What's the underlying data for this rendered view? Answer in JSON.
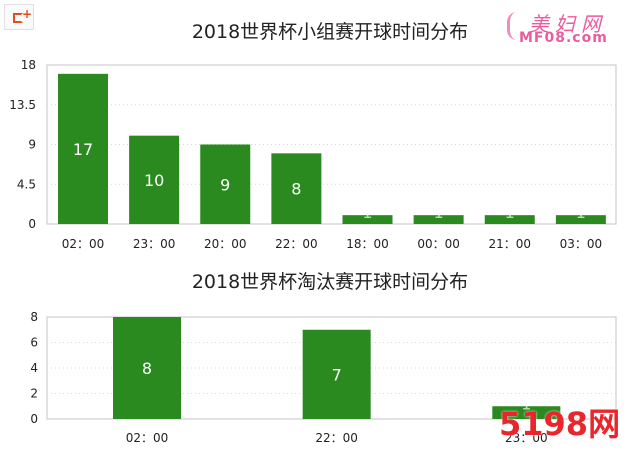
{
  "chart_data": [
    {
      "type": "bar",
      "title": "2018世界杯小组赛开球时间分布",
      "categories": [
        "02：00",
        "23：00",
        "20：00",
        "22：00",
        "18：00",
        "00：00",
        "21：00",
        "03：00"
      ],
      "values": [
        17,
        10,
        9,
        8,
        1,
        1,
        1,
        1
      ],
      "data_labels": [
        "17",
        "10",
        "9",
        "8",
        "1",
        "1",
        "1",
        "1"
      ],
      "yticks": [
        "0",
        "4.5",
        "9",
        "13.5",
        "18"
      ],
      "ylim": [
        0,
        18
      ],
      "grid": true,
      "bar_color": "#2a8a1f"
    },
    {
      "type": "bar",
      "title": "2018世界杯淘汰赛开球时间分布",
      "categories": [
        "02：00",
        "22：00",
        "23：00"
      ],
      "values": [
        8,
        7,
        1
      ],
      "data_labels": [
        "8",
        "7",
        "1"
      ],
      "yticks": [
        "0",
        "2",
        "4",
        "6",
        "8"
      ],
      "ylim": [
        0,
        8
      ],
      "grid": true,
      "bar_color": "#2a8a1f"
    }
  ],
  "watermarks": {
    "top_right_cn": "美妇网",
    "top_right_en": "MF08.com",
    "bottom_right_num": "5198",
    "bottom_right_cn": "网"
  },
  "icons": {
    "corner_logo": "share-icon"
  }
}
